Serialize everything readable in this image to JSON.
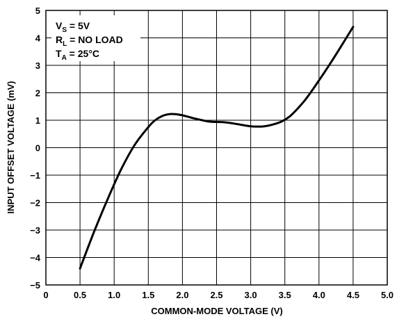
{
  "chart_data": {
    "type": "line",
    "xlabel": "COMMON-MODE VOLTAGE (V)",
    "ylabel": "INPUT OFFSET VOLTAGE (mV)",
    "xlim": [
      0,
      5.0
    ],
    "ylim": [
      -5,
      5
    ],
    "grid": true,
    "x_ticks": [
      0,
      0.5,
      1.0,
      1.5,
      2.0,
      2.5,
      3.0,
      3.5,
      4.0,
      4.5,
      5.0
    ],
    "x_tick_labels": [
      "0",
      "0.5",
      "1.0",
      "1.5",
      "2.0",
      "2.5",
      "3.0",
      "3.5",
      "4.0",
      "4.5",
      "5.0"
    ],
    "y_ticks": [
      -5,
      -4,
      -3,
      -2,
      -1,
      0,
      1,
      2,
      3,
      4,
      5
    ],
    "y_tick_labels": [
      "−5",
      "−4",
      "−3",
      "−2",
      "−1",
      "0",
      "1",
      "2",
      "3",
      "4",
      "5"
    ],
    "conditions": [
      {
        "main": "V",
        "sub": "S",
        "rest": " = 5V"
      },
      {
        "main": "R",
        "sub": "L",
        "rest": " = NO LOAD"
      },
      {
        "main": "T",
        "sub": "A",
        "rest": " = 25°C"
      }
    ],
    "series": [
      {
        "x": [
          0.5,
          0.7,
          0.9,
          1.1,
          1.3,
          1.5,
          1.6,
          1.7,
          1.8,
          1.9,
          2.0,
          2.2,
          2.4,
          2.6,
          2.8,
          3.0,
          3.2,
          3.4,
          3.5,
          3.6,
          3.8,
          4.0,
          4.2,
          4.4,
          4.5
        ],
        "y": [
          -4.4,
          -3.1,
          -1.9,
          -0.8,
          0.1,
          0.75,
          1.0,
          1.15,
          1.22,
          1.22,
          1.18,
          1.05,
          0.95,
          0.93,
          0.86,
          0.78,
          0.78,
          0.9,
          1.02,
          1.2,
          1.75,
          2.45,
          3.2,
          4.0,
          4.4
        ]
      }
    ]
  }
}
